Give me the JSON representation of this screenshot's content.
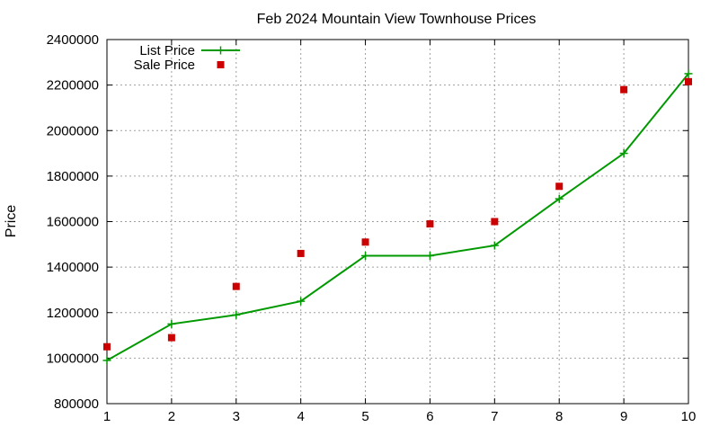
{
  "chart_data": {
    "type": "line",
    "title": "Feb 2024 Mountain View Townhouse Prices",
    "xlabel": "",
    "ylabel": "Price",
    "x": [
      1,
      2,
      3,
      4,
      5,
      6,
      7,
      8,
      9,
      10
    ],
    "xlim": [
      1,
      10
    ],
    "ylim": [
      800000,
      2400000
    ],
    "xticks": [
      1,
      2,
      3,
      4,
      5,
      6,
      7,
      8,
      9,
      10
    ],
    "yticks": [
      800000,
      1000000,
      1200000,
      1400000,
      1600000,
      1800000,
      2000000,
      2200000,
      2400000
    ],
    "grid": true,
    "legend_position": "top-left",
    "series": [
      {
        "name": "List Price",
        "style": "line-plus",
        "color": "#009900",
        "values": [
          990000,
          1150000,
          1190000,
          1250000,
          1450000,
          1450000,
          1495000,
          1700000,
          1900000,
          2250000
        ]
      },
      {
        "name": "Sale Price",
        "style": "square-points",
        "color": "#cc0000",
        "values": [
          1050000,
          1090000,
          1315000,
          1460000,
          1510000,
          1590000,
          1600000,
          1755000,
          2180000,
          2215000
        ]
      }
    ]
  }
}
